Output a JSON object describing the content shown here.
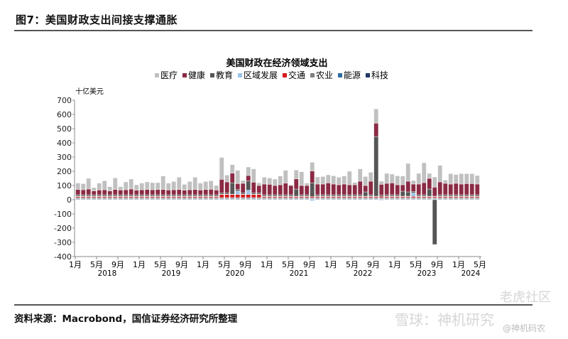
{
  "header": {
    "title": "图7：美国财政支出间接支撑通胀"
  },
  "footer": {
    "source": "资料来源：Macrobond，国信证券经济研究所整理"
  },
  "watermarks": [
    "老虎社区",
    "雪球：神机研究",
    "@神机码农"
  ],
  "chart_data": {
    "type": "bar",
    "stacked": true,
    "title": "美国财政在经济领域支出",
    "ylabel": "十亿美元",
    "xlabel": "",
    "ylim": [
      -400,
      700
    ],
    "yticks": [
      -400,
      -300,
      -200,
      -100,
      0,
      100,
      200,
      300,
      400,
      500,
      600,
      700
    ],
    "legend_position": "top",
    "start_month": "2018-01",
    "x_tick_labels": [
      "1月",
      "5月",
      "9月",
      "1月",
      "5月",
      "9月",
      "1月",
      "5月",
      "9月",
      "1月",
      "5月",
      "9月",
      "1月",
      "5月",
      "9月",
      "1月",
      "5月",
      "9月",
      "1月",
      "5月"
    ],
    "year_labels": [
      "2018",
      "2019",
      "2020",
      "2021",
      "2022",
      "2023",
      "2024"
    ],
    "series": [
      {
        "name": "医疗",
        "color": "#c0c0c0",
        "values": [
          45,
          43,
          75,
          23,
          49,
          63,
          30,
          81,
          24,
          55,
          70,
          39,
          47,
          53,
          50,
          48,
          95,
          49,
          58,
          86,
          42,
          58,
          86,
          49,
          56,
          60,
          32,
          154,
          48,
          60,
          94,
          20,
          60,
          94,
          18,
          48,
          45,
          45,
          62,
          90,
          5,
          61,
          97,
          17,
          61,
          50,
          53,
          57,
          58,
          53,
          57,
          95,
          17,
          87,
          63,
          63,
          100,
          22,
          70,
          62,
          63,
          62,
          125,
          25,
          75,
          140,
          35,
          72,
          117,
          23,
          73,
          62,
          73,
          70,
          70,
          60
        ]
      },
      {
        "name": "健康",
        "color": "#8b2a44",
        "values": [
          37,
          35,
          40,
          27,
          33,
          35,
          27,
          37,
          33,
          35,
          40,
          31,
          35,
          37,
          35,
          37,
          37,
          33,
          35,
          37,
          31,
          35,
          37,
          33,
          37,
          38,
          33,
          94,
          76,
          68,
          41,
          66,
          38,
          74,
          51,
          75,
          73,
          65,
          70,
          82,
          65,
          72,
          65,
          65,
          84,
          75,
          75,
          83,
          75,
          70,
          75,
          70,
          70,
          95,
          45,
          95,
          93,
          75,
          80,
          83,
          70,
          45,
          75,
          52,
          75,
          85,
          75,
          63,
          90,
          80,
          75,
          80,
          75,
          78,
          78,
          75
        ]
      },
      {
        "name": "教育",
        "color": "#555555",
        "values": [
          10,
          10,
          10,
          10,
          10,
          10,
          10,
          10,
          10,
          10,
          10,
          10,
          10,
          10,
          10,
          10,
          10,
          10,
          10,
          10,
          10,
          10,
          10,
          10,
          10,
          10,
          10,
          10,
          10,
          80,
          10,
          10,
          65,
          10,
          10,
          10,
          10,
          10,
          10,
          10,
          10,
          50,
          10,
          10,
          95,
          10,
          10,
          10,
          10,
          10,
          10,
          10,
          10,
          10,
          30,
          10,
          420,
          10,
          10,
          10,
          10,
          35,
          30,
          10,
          10,
          10,
          50,
          -315,
          10,
          10,
          10,
          10,
          10,
          10,
          10,
          10
        ]
      },
      {
        "name": "区域发展",
        "color": "#9dc3e6",
        "values": [
          2,
          2,
          2,
          2,
          2,
          2,
          2,
          2,
          2,
          2,
          2,
          2,
          2,
          2,
          2,
          2,
          2,
          2,
          2,
          2,
          2,
          2,
          2,
          2,
          2,
          2,
          2,
          2,
          2,
          2,
          25,
          2,
          30,
          2,
          2,
          2,
          2,
          2,
          2,
          2,
          2,
          2,
          2,
          2,
          -8,
          2,
          2,
          2,
          2,
          2,
          2,
          2,
          2,
          2,
          2,
          2,
          2,
          -5,
          2,
          2,
          2,
          2,
          2,
          25,
          2,
          2,
          2,
          2,
          2,
          2,
          2,
          2,
          2,
          2,
          2,
          2
        ]
      },
      {
        "name": "交通",
        "color": "#d7191c",
        "values": [
          8,
          8,
          8,
          8,
          8,
          8,
          8,
          8,
          8,
          8,
          8,
          8,
          8,
          8,
          8,
          8,
          8,
          8,
          8,
          8,
          8,
          8,
          8,
          8,
          8,
          8,
          8,
          22,
          22,
          22,
          22,
          22,
          22,
          22,
          22,
          8,
          8,
          8,
          8,
          8,
          8,
          8,
          8,
          8,
          8,
          8,
          8,
          8,
          8,
          8,
          8,
          8,
          8,
          8,
          8,
          8,
          8,
          8,
          8,
          8,
          8,
          8,
          8,
          8,
          8,
          8,
          8,
          8,
          8,
          8,
          8,
          8,
          8,
          8,
          8,
          8
        ]
      },
      {
        "name": "农业",
        "color": "#7f7f7f",
        "values": [
          8,
          8,
          8,
          8,
          8,
          8,
          8,
          8,
          8,
          8,
          8,
          8,
          8,
          8,
          8,
          8,
          8,
          8,
          8,
          8,
          8,
          8,
          8,
          8,
          8,
          8,
          8,
          8,
          8,
          8,
          8,
          8,
          8,
          8,
          8,
          8,
          8,
          8,
          8,
          8,
          8,
          8,
          8,
          8,
          8,
          8,
          8,
          8,
          8,
          8,
          8,
          8,
          8,
          8,
          8,
          8,
          8,
          8,
          8,
          8,
          8,
          8,
          8,
          8,
          8,
          8,
          8,
          8,
          8,
          8,
          8,
          8,
          8,
          8,
          8,
          8
        ]
      },
      {
        "name": "能源",
        "color": "#2e6ca4",
        "values": [
          3,
          3,
          3,
          3,
          3,
          3,
          3,
          3,
          3,
          3,
          3,
          3,
          3,
          3,
          3,
          3,
          3,
          3,
          3,
          3,
          3,
          3,
          3,
          3,
          3,
          3,
          3,
          3,
          3,
          3,
          3,
          3,
          3,
          3,
          3,
          3,
          3,
          3,
          3,
          3,
          3,
          3,
          3,
          3,
          3,
          3,
          3,
          3,
          3,
          3,
          3,
          3,
          3,
          3,
          3,
          3,
          3,
          3,
          3,
          3,
          3,
          3,
          3,
          3,
          3,
          3,
          3,
          3,
          3,
          3,
          3,
          3,
          3,
          3,
          3,
          3
        ]
      },
      {
        "name": "科技",
        "color": "#1f3864",
        "values": [
          4,
          4,
          4,
          4,
          4,
          4,
          4,
          4,
          4,
          4,
          4,
          4,
          4,
          4,
          4,
          4,
          4,
          4,
          4,
          4,
          4,
          4,
          4,
          4,
          4,
          4,
          4,
          4,
          4,
          4,
          4,
          4,
          4,
          4,
          4,
          4,
          4,
          4,
          4,
          4,
          4,
          4,
          4,
          4,
          4,
          4,
          4,
          4,
          4,
          4,
          4,
          4,
          4,
          4,
          4,
          4,
          4,
          4,
          4,
          4,
          4,
          4,
          4,
          4,
          4,
          4,
          4,
          4,
          4,
          4,
          4,
          4,
          4,
          4,
          4,
          4
        ]
      }
    ]
  }
}
